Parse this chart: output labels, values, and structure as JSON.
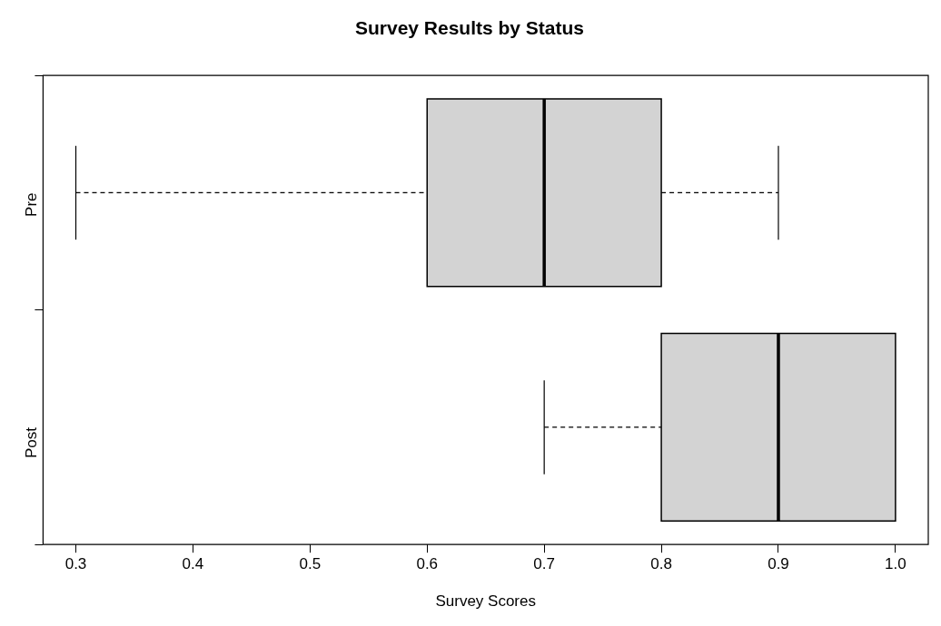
{
  "chart_data": {
    "type": "box",
    "title": "Survey Results by Status",
    "xlabel": "Survey Scores",
    "orientation": "horizontal",
    "color": "#d3d3d3",
    "categories": [
      "Pre",
      "Post"
    ],
    "boxes": [
      {
        "low": 0.3,
        "q1": 0.6,
        "median": 0.7,
        "q3": 0.8,
        "high": 0.9
      },
      {
        "low": 0.7,
        "q1": 0.8,
        "median": 0.9,
        "q3": 1.0,
        "high": 1.0
      }
    ],
    "xlim": [
      0.272,
      1.028
    ],
    "xticks": [
      0.3,
      0.4,
      0.5,
      0.6,
      0.7,
      0.8,
      0.9,
      {
        "value": 1,
        "label": "1.0"
      }
    ]
  }
}
